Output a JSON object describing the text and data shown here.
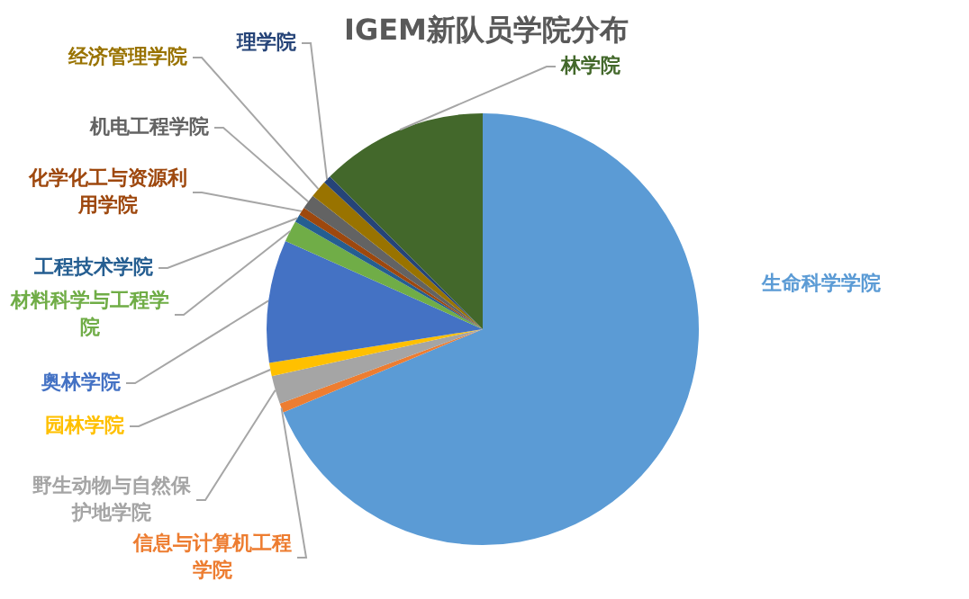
{
  "chart_data": {
    "type": "pie",
    "title": "IGEM新队员学院分布",
    "categories": [
      "生命科学学院",
      "信息与计算机工程学院",
      "野生动物与自然保护地学院",
      "园林学院",
      "奥林学院",
      "材料科学与工程学院",
      "工程技术学院",
      "化学化工与资源利用学院",
      "机电工程学院",
      "经济管理学院",
      "理学院",
      "林学院"
    ],
    "values": [
      68.7,
      0.7,
      2.1,
      1.0,
      9.2,
      1.6,
      0.6,
      0.6,
      1.1,
      1.3,
      0.6,
      12.5
    ],
    "colors": [
      "#5b9bd5",
      "#ed7d31",
      "#a5a5a5",
      "#ffc000",
      "#4472c4",
      "#70ad47",
      "#255e91",
      "#9e480e",
      "#636363",
      "#997300",
      "#264478",
      "#43682b"
    ],
    "legend": false
  }
}
